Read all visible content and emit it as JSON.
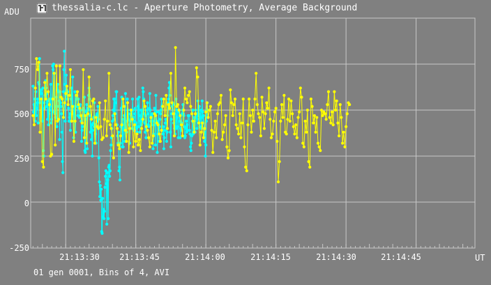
{
  "window": {
    "title": "thessalia-c.lc - Aperture Photometry, Average Background",
    "icon": "chart-app-icon"
  },
  "footer": "01 gen 0001, Bins of 4, AVI",
  "colors": {
    "background": "#808080",
    "grid": "#c8c8c8",
    "series_cyan": "#00ffff",
    "series_yellow": "#ffff00",
    "text": "#ffffff"
  },
  "chart_data": {
    "type": "line",
    "title": "",
    "xlabel": "UT",
    "ylabel": "ADU",
    "ylim": [
      -250,
      1000
    ],
    "xlim": [
      "21:13:22.5",
      "21:14:57.6"
    ],
    "yticks": [
      "750",
      "500",
      "250",
      "0",
      "-250"
    ],
    "yticks_values": [
      750,
      500,
      250,
      0,
      -250
    ],
    "xticks": [
      "21:13:30",
      "21:13:45",
      "21:14:00",
      "21:14:15",
      "21:14:30",
      "21:14:45"
    ],
    "grid": true,
    "marker": "dot",
    "series": [
      {
        "color": "#00ffff",
        "x_start": "21:13:23",
        "x_step_seconds": 0.1,
        "values": [
          630,
          490,
          530,
          480,
          560,
          440,
          600,
          470,
          510,
          540,
          560,
          430,
          650,
          640,
          780,
          540,
          600,
          610,
          590,
          560,
          440,
          620,
          280,
          250,
          540,
          510,
          580,
          660,
          620,
          520,
          590,
          450,
          550,
          420,
          480,
          560,
          500,
          520,
          640,
          430,
          450,
          560,
          740,
          720,
          750,
          490,
          700,
          480,
          460,
          520,
          570,
          410,
          610,
          640,
          600,
          520,
          550,
          340,
          600,
          540,
          520,
          480,
          380,
          220,
          160,
          600,
          720,
          820,
          640,
          440,
          580,
          690,
          610,
          560,
          600,
          530,
          510,
          440,
          460,
          480,
          390,
          560,
          620,
          580,
          500,
          680,
          480,
          350,
          520,
          440,
          600,
          380,
          560,
          560,
          580,
          520,
          470,
          560,
          520,
          460,
          520,
          530,
          500,
          440,
          330,
          390,
          410,
          470,
          510,
          500,
          570,
          280,
          270,
          450,
          490,
          530,
          290,
          510,
          500,
          580,
          620,
          560,
          470,
          380,
          450,
          340,
          420,
          250,
          390,
          430,
          460,
          540,
          410,
          420,
          370,
          320,
          470,
          480,
          440,
          520,
          450,
          240,
          110,
          30,
          90,
          10,
          70,
          -160,
          -170,
          20,
          -80,
          -40,
          -90,
          -50,
          80,
          140,
          170,
          100,
          -120,
          160,
          120,
          -90,
          190,
          200,
          140,
          170,
          280,
          310,
          350,
          400,
          440,
          470,
          500,
          560,
          450,
          560,
          480,
          540,
          600,
          600,
          420,
          360,
          320,
          380,
          170,
          190,
          120,
          320,
          410,
          510,
          570,
          300,
          450,
          300,
          420,
          470,
          400,
          330,
          590,
          400,
          380,
          440,
          560,
          500,
          450,
          480,
          420,
          320,
          440,
          500,
          470,
          450,
          400,
          560,
          500,
          460,
          390,
          440,
          480,
          510,
          410,
          430,
          400,
          380,
          560,
          520,
          410,
          570,
          470,
          380,
          440,
          500,
          420,
          500,
          440,
          620,
          600,
          560,
          480,
          430,
          380,
          470,
          350,
          420,
          500,
          540,
          480,
          420,
          410,
          510,
          590,
          500,
          440,
          470,
          480,
          420,
          480,
          290,
          370,
          440,
          510,
          420,
          310,
          580,
          490,
          440,
          270,
          370,
          420,
          490,
          330,
          410,
          450,
          480,
          500,
          560,
          520,
          390,
          370,
          410,
          290,
          350,
          390,
          430,
          450,
          430,
          330,
          380,
          470,
          540,
          560,
          620,
          650,
          580,
          380,
          300,
          450,
          480,
          520,
          540,
          530,
          430,
          480,
          400,
          370,
          410,
          560,
          400,
          460,
          500,
          410,
          350,
          490,
          500,
          440,
          350,
          400,
          390,
          430,
          480,
          500,
          530,
          480,
          470,
          410,
          350,
          360,
          400,
          440,
          380,
          420,
          390,
          470,
          470,
          470,
          390,
          370,
          300,
          280,
          320,
          360,
          440,
          500,
          370,
          380,
          460,
          440,
          380,
          500,
          460,
          480,
          400,
          450,
          550,
          470,
          480,
          520,
          410,
          460,
          500,
          400,
          460,
          550,
          490,
          430,
          470,
          400,
          330,
          380,
          250,
          310,
          440,
          500,
          540,
          460
        ]
      },
      {
        "color": "#ffff00",
        "x_start": "21:13:23",
        "x_step_seconds": 0.25,
        "values": [
          470,
          420,
          620,
          780,
          720,
          760,
          380,
          560,
          220,
          190,
          650,
          560,
          700,
          600,
          530,
          250,
          260,
          560,
          700,
          310,
          740,
          440,
          450,
          740,
          570,
          560,
          460,
          540,
          590,
          630,
          530,
          580,
          720,
          440,
          520,
          330,
          440,
          580,
          600,
          530,
          510,
          470,
          430,
          720,
          350,
          470,
          320,
          480,
          680,
          520,
          450,
          550,
          560,
          320,
          460,
          410,
          400,
          540,
          410,
          340,
          350,
          450,
          550,
          360,
          440,
          700,
          420,
          400,
          360,
          240,
          480,
          420,
          400,
          310,
          290,
          360,
          420,
          560,
          520,
          390,
          330,
          540,
          270,
          400,
          500,
          450,
          300,
          420,
          330,
          370,
          310,
          340,
          280,
          400,
          450,
          550,
          520,
          410,
          390,
          350,
          300,
          460,
          320,
          360,
          480,
          470,
          430,
          420,
          370,
          330,
          390,
          520,
          560,
          470,
          580,
          400,
          530,
          510,
          700,
          540,
          480,
          360,
          840,
          520,
          530,
          500,
          470,
          420,
          360,
          500,
          620,
          560,
          540,
          580,
          600,
          520,
          480,
          440,
          380,
          480,
          730,
          680,
          430,
          310,
          380,
          430,
          350,
          400,
          490,
          540,
          460,
          500,
          520,
          390,
          270,
          380,
          440,
          350,
          480,
          530,
          540,
          580,
          340,
          380,
          420,
          470,
          300,
          240,
          280,
          610,
          540,
          470,
          530,
          560,
          420,
          400,
          370,
          480,
          350,
          430,
          560,
          300,
          190,
          170,
          420,
          560,
          470,
          380,
          500,
          440,
          560,
          700,
          530,
          480,
          460,
          360,
          570,
          490,
          400,
          480,
          540,
          510,
          620,
          450,
          350,
          370,
          440,
          490,
          510,
          330,
          110,
          220,
          440,
          530,
          460,
          580,
          380,
          370,
          450,
          560,
          440,
          550,
          480,
          410,
          370,
          420,
          350,
          460,
          490,
          620,
          570,
          320,
          300,
          440,
          380,
          500,
          220,
          190,
          560,
          520,
          430,
          470,
          380,
          460,
          320,
          300,
          280,
          500,
          470,
          490,
          480,
          450,
          530,
          600,
          460,
          430,
          490,
          420,
          600,
          500,
          550,
          430,
          360,
          530,
          460,
          320,
          380,
          300,
          410,
          480,
          540,
          530
        ]
      }
    ]
  }
}
